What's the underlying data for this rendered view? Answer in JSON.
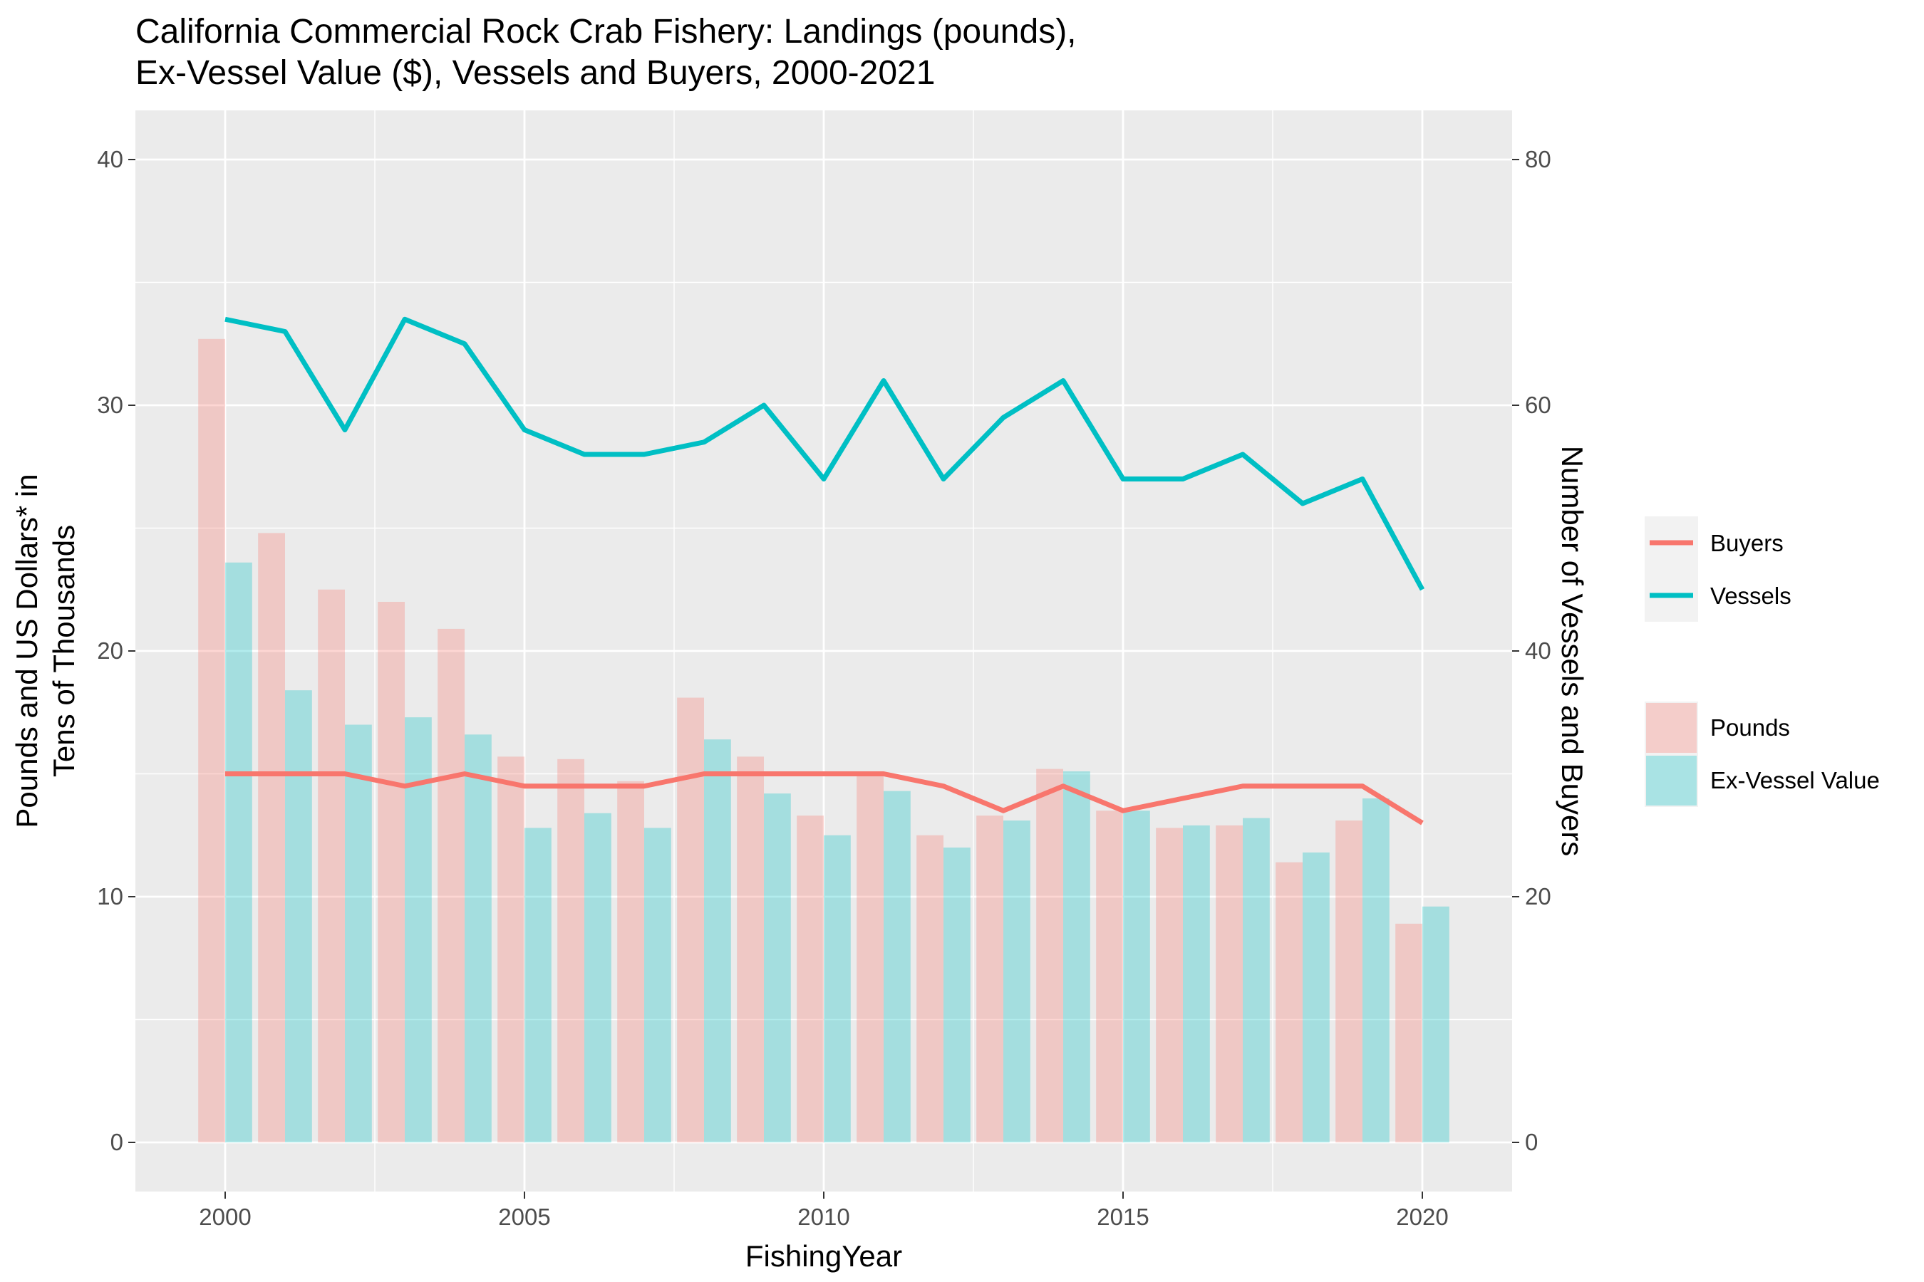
{
  "chart_data": {
    "type": "bar",
    "title_lines": [
      "California Commercial Rock Crab Fishery: Landings (pounds),",
      "Ex-Vessel Value ($), Vessels and Buyers, 2000-2021"
    ],
    "xlabel": "FishingYear",
    "ylabel_lines": [
      "Pounds and US Dollars* in",
      "Tens of Thousands"
    ],
    "y2label": "Number of Vessels and Buyers",
    "x": [
      2000,
      2001,
      2002,
      2003,
      2004,
      2005,
      2006,
      2007,
      2008,
      2009,
      2010,
      2011,
      2012,
      2013,
      2014,
      2015,
      2016,
      2017,
      2018,
      2019,
      2020
    ],
    "xlim": [
      1998.5,
      2021.5
    ],
    "x_ticks": [
      2000,
      2005,
      2010,
      2015,
      2020
    ],
    "ylim": [
      -2,
      42
    ],
    "y_ticks": [
      0,
      10,
      20,
      30,
      40
    ],
    "y2lim": [
      -4,
      84
    ],
    "y2_ticks": [
      0,
      20,
      40,
      60,
      80
    ],
    "grid": true,
    "legend_position": "right",
    "bar_series": [
      {
        "name": "Pounds",
        "color": "#F8766D",
        "axis": "left",
        "values": [
          32.7,
          24.8,
          22.5,
          22.0,
          20.9,
          15.7,
          15.6,
          14.7,
          18.1,
          15.7,
          13.3,
          15.0,
          12.5,
          13.3,
          15.2,
          13.5,
          12.8,
          12.9,
          11.4,
          13.1,
          8.9
        ]
      },
      {
        "name": "Ex-Vessel Value",
        "color": "#00BFC4",
        "axis": "left",
        "values": [
          23.6,
          18.4,
          17.0,
          17.3,
          16.6,
          12.8,
          13.4,
          12.8,
          16.4,
          14.2,
          12.5,
          14.3,
          12.0,
          13.1,
          15.1,
          13.5,
          12.9,
          13.2,
          11.8,
          14.0,
          9.6
        ]
      }
    ],
    "line_series": [
      {
        "name": "Buyers",
        "color": "#F8766D",
        "axis": "right",
        "values": [
          30,
          30,
          30,
          29,
          30,
          29,
          29,
          29,
          30,
          30,
          30,
          30,
          29,
          27,
          29,
          27,
          28,
          29,
          29,
          29,
          26
        ]
      },
      {
        "name": "Vessels",
        "color": "#00BFC4",
        "axis": "right",
        "values": [
          67,
          66,
          58,
          67,
          65,
          58,
          56,
          56,
          57,
          60,
          54,
          62,
          54,
          59,
          62,
          54,
          54,
          56,
          52,
          54,
          45
        ]
      }
    ],
    "line_legend": [
      "Buyers",
      "Vessels"
    ],
    "fill_legend": [
      "Pounds",
      "Ex-Vessel Value"
    ]
  }
}
